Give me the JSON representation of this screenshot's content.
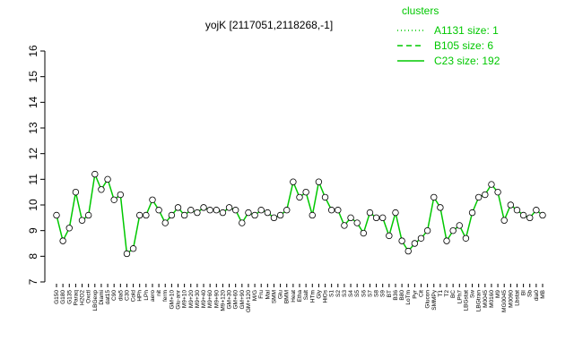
{
  "chart_data": {
    "type": "line",
    "title": "yojK [2117051,2118268,-1]",
    "ylim": [
      7,
      16
    ],
    "yticks": [
      7,
      8,
      9,
      10,
      11,
      12,
      13,
      14,
      15,
      16
    ],
    "legend_title": "clusters",
    "legend": [
      {
        "label": "A1131 size: 1",
        "style": "dotted"
      },
      {
        "label": "B105 size: 6",
        "style": "dashed"
      },
      {
        "label": "C23 size: 192",
        "style": "solid"
      }
    ],
    "line_color": "#00c800",
    "categories": [
      "G150",
      "G180",
      "G135",
      "Paraq",
      "H2O2",
      "Oxctl",
      "LBGexp",
      "Diami",
      "dat15",
      "C90",
      "dia5",
      "C30",
      "Cold",
      "HPh",
      "LPh",
      "aero",
      "nit",
      "ferm",
      "GM+10",
      "Glu-anr",
      "M9+10",
      "M9+20",
      "M9+30",
      "M9+40",
      "M9+60",
      "M9+90",
      "M9+120",
      "GM+30",
      "GM+60",
      "GM+90",
      "GM+120",
      "M/G",
      "Fru",
      "Mal",
      "SMM",
      "Glu",
      "BMM",
      "Heat",
      "Etha",
      "Salt",
      "HTm",
      "Gly",
      "HiOs",
      "S1",
      "S2",
      "S3",
      "S4",
      "S5",
      "S6",
      "S7",
      "S8",
      "S9",
      "BT",
      "B36",
      "B80",
      "LoTm",
      "Pyr",
      "Cit",
      "Glucon",
      "SMMPy",
      "T1",
      "T2",
      "BC",
      "LPh7",
      "LBGstat",
      "Sw",
      "LBGtran",
      "M0045",
      "M0160",
      "M9",
      "MG0045",
      "M0090",
      "Lbstat",
      "BI",
      "Sb",
      "dia0",
      "MB"
    ],
    "series": [
      {
        "name": "C23 size: 192",
        "color": "#00c800",
        "values": [
          9.6,
          8.6,
          9.1,
          10.5,
          9.4,
          9.6,
          11.2,
          10.6,
          11.0,
          10.2,
          10.4,
          8.1,
          8.3,
          9.6,
          9.6,
          10.2,
          9.8,
          9.3,
          9.6,
          9.9,
          9.6,
          9.8,
          9.7,
          9.9,
          9.8,
          9.8,
          9.7,
          9.9,
          9.8,
          9.3,
          9.7,
          9.6,
          9.8,
          9.7,
          9.5,
          9.6,
          9.8,
          10.9,
          10.3,
          10.5,
          9.6,
          10.9,
          10.3,
          9.8,
          9.8,
          9.2,
          9.5,
          9.3,
          8.9,
          9.7,
          9.5,
          9.5,
          8.8,
          9.7,
          8.6,
          8.2,
          8.5,
          8.7,
          9.0,
          10.3,
          9.9,
          8.6,
          9.0,
          9.2,
          8.7,
          9.7,
          10.3,
          10.4,
          10.8,
          10.5,
          9.4,
          10.0,
          9.8,
          9.6,
          9.5,
          9.8,
          9.6
        ]
      }
    ]
  }
}
